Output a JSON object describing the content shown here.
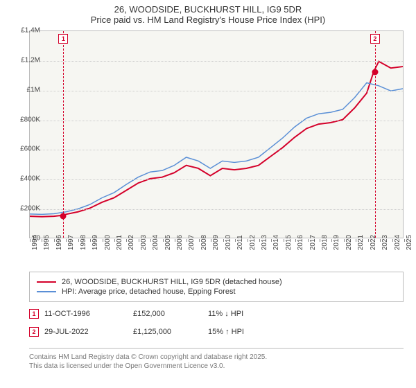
{
  "title": {
    "line1": "26, WOODSIDE, BUCKHURST HILL, IG9 5DR",
    "line2": "Price paid vs. HM Land Registry's House Price Index (HPI)"
  },
  "chart": {
    "type": "line",
    "plot_bg": "#f6f6f2",
    "grid_color": "#cccccc",
    "border_color": "#bbbbbb",
    "y": {
      "min": 0,
      "max": 1400000,
      "step": 200000,
      "labels": [
        "£0",
        "£200K",
        "£400K",
        "£600K",
        "£800K",
        "£1M",
        "£1.2M",
        "£1.4M"
      ]
    },
    "x": {
      "min": 1994,
      "max": 2025,
      "step": 1,
      "labels": [
        "1994",
        "1995",
        "1996",
        "1997",
        "1998",
        "1999",
        "2000",
        "2001",
        "2002",
        "2003",
        "2004",
        "2005",
        "2006",
        "2007",
        "2008",
        "2009",
        "2010",
        "2011",
        "2012",
        "2013",
        "2014",
        "2015",
        "2016",
        "2017",
        "2018",
        "2019",
        "2020",
        "2021",
        "2022",
        "2023",
        "2024",
        "2025"
      ]
    },
    "series": [
      {
        "name": "26, WOODSIDE, BUCKHURST HILL, IG9 5DR (detached house)",
        "color": "#d4002a",
        "line_width": 2,
        "data": [
          [
            1994,
            145000
          ],
          [
            1995,
            142000
          ],
          [
            1996,
            145000
          ],
          [
            1996.78,
            152000
          ],
          [
            1997,
            158000
          ],
          [
            1998,
            175000
          ],
          [
            1999,
            200000
          ],
          [
            2000,
            240000
          ],
          [
            2001,
            270000
          ],
          [
            2002,
            320000
          ],
          [
            2003,
            370000
          ],
          [
            2004,
            400000
          ],
          [
            2005,
            410000
          ],
          [
            2006,
            440000
          ],
          [
            2007,
            490000
          ],
          [
            2008,
            470000
          ],
          [
            2009,
            420000
          ],
          [
            2010,
            470000
          ],
          [
            2011,
            460000
          ],
          [
            2012,
            470000
          ],
          [
            2013,
            490000
          ],
          [
            2014,
            550000
          ],
          [
            2015,
            610000
          ],
          [
            2016,
            680000
          ],
          [
            2017,
            740000
          ],
          [
            2018,
            770000
          ],
          [
            2019,
            780000
          ],
          [
            2020,
            800000
          ],
          [
            2021,
            880000
          ],
          [
            2022,
            980000
          ],
          [
            2022.58,
            1125000
          ],
          [
            2023,
            1195000
          ],
          [
            2024,
            1150000
          ],
          [
            2025,
            1160000
          ]
        ]
      },
      {
        "name": "HPI: Average price, detached house, Epping Forest",
        "color": "#5a8fd6",
        "line_width": 1.5,
        "data": [
          [
            1994,
            160000
          ],
          [
            1995,
            158000
          ],
          [
            1996,
            162000
          ],
          [
            1997,
            175000
          ],
          [
            1998,
            195000
          ],
          [
            1999,
            225000
          ],
          [
            2000,
            270000
          ],
          [
            2001,
            305000
          ],
          [
            2002,
            360000
          ],
          [
            2003,
            410000
          ],
          [
            2004,
            445000
          ],
          [
            2005,
            455000
          ],
          [
            2006,
            490000
          ],
          [
            2007,
            545000
          ],
          [
            2008,
            520000
          ],
          [
            2009,
            470000
          ],
          [
            2010,
            520000
          ],
          [
            2011,
            510000
          ],
          [
            2012,
            520000
          ],
          [
            2013,
            545000
          ],
          [
            2014,
            610000
          ],
          [
            2015,
            675000
          ],
          [
            2016,
            750000
          ],
          [
            2017,
            810000
          ],
          [
            2018,
            840000
          ],
          [
            2019,
            850000
          ],
          [
            2020,
            870000
          ],
          [
            2021,
            950000
          ],
          [
            2022,
            1050000
          ],
          [
            2023,
            1030000
          ],
          [
            2024,
            995000
          ],
          [
            2025,
            1010000
          ]
        ]
      }
    ],
    "markers": [
      {
        "n": "1",
        "year": 1996.78,
        "value": 152000,
        "color": "#d4002a"
      },
      {
        "n": "2",
        "year": 2022.58,
        "value": 1125000,
        "color": "#d4002a"
      }
    ]
  },
  "legend": {
    "items": [
      {
        "color": "#d4002a",
        "label": "26, WOODSIDE, BUCKHURST HILL, IG9 5DR (detached house)"
      },
      {
        "color": "#5a8fd6",
        "label": "HPI: Average price, detached house, Epping Forest"
      }
    ]
  },
  "transactions": [
    {
      "n": "1",
      "color": "#d4002a",
      "date": "11-OCT-1996",
      "price": "£152,000",
      "hpi": "11% ↓ HPI"
    },
    {
      "n": "2",
      "color": "#d4002a",
      "date": "29-JUL-2022",
      "price": "£1,125,000",
      "hpi": "15% ↑ HPI"
    }
  ],
  "footer": {
    "line1": "Contains HM Land Registry data © Crown copyright and database right 2025.",
    "line2": "This data is licensed under the Open Government Licence v3.0."
  }
}
